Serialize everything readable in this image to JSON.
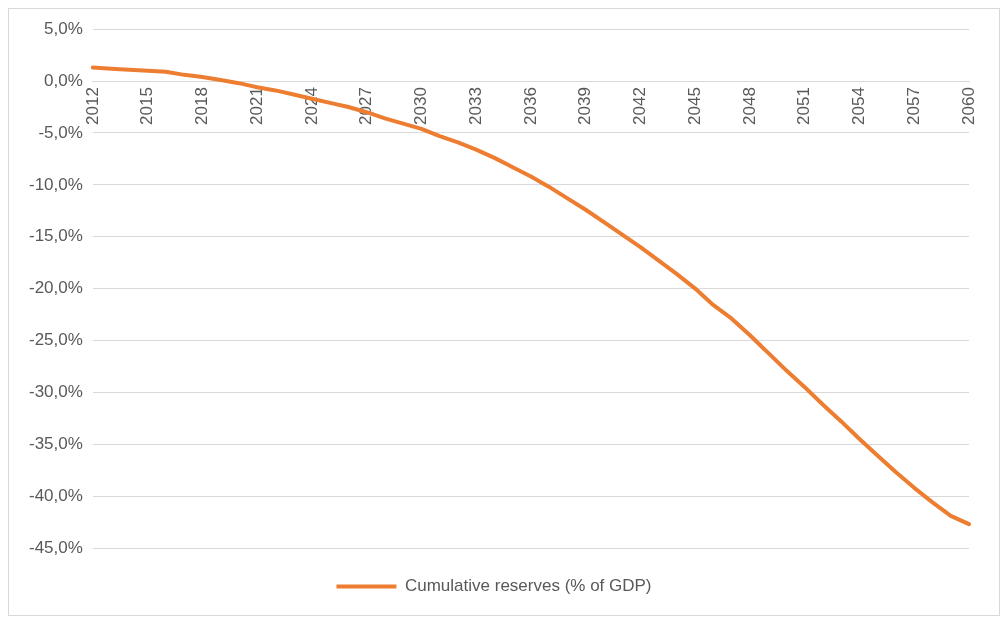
{
  "chart_data": {
    "type": "line",
    "categories": [
      "2012",
      null,
      null,
      "2015",
      null,
      null,
      "2018",
      null,
      null,
      "2021",
      null,
      null,
      "2024",
      null,
      null,
      "2027",
      null,
      null,
      "2030",
      null,
      null,
      "2033",
      null,
      null,
      "2036",
      null,
      null,
      "2039",
      null,
      null,
      "2042",
      null,
      null,
      "2045",
      null,
      null,
      "2048",
      null,
      null,
      "2051",
      null,
      null,
      "2054",
      null,
      null,
      "2057",
      null,
      null,
      "2060"
    ],
    "series": [
      {
        "name": "Cumulative reserves (% of GDP)",
        "color": "#ed7d31",
        "values": [
          1.3,
          1.2,
          1.1,
          1.0,
          0.9,
          0.6,
          0.4,
          0.1,
          -0.2,
          -0.6,
          -0.9,
          -1.3,
          -1.7,
          -2.1,
          -2.5,
          -3.0,
          -3.6,
          -4.1,
          -4.6,
          -5.3,
          -5.9,
          -6.6,
          -7.4,
          -8.3,
          -9.2,
          -10.2,
          -11.3,
          -12.4,
          -13.6,
          -14.8,
          -16.0,
          -17.3,
          -18.6,
          -20.0,
          -21.6,
          -22.9,
          -24.5,
          -26.2,
          -27.9,
          -29.5,
          -31.2,
          -32.8,
          -34.5,
          -36.1,
          -37.7,
          -39.2,
          -40.6,
          -41.9,
          -42.7
        ]
      }
    ],
    "ylim": [
      -45,
      5
    ],
    "yticks": [
      {
        "value": 5,
        "label": "5,0%"
      },
      {
        "value": 0,
        "label": "0,0%"
      },
      {
        "value": -5,
        "label": "-5,0%"
      },
      {
        "value": -10,
        "label": "-10,0%"
      },
      {
        "value": -15,
        "label": "-15,0%"
      },
      {
        "value": -20,
        "label": "-20,0%"
      },
      {
        "value": -25,
        "label": "-25,0%"
      },
      {
        "value": -30,
        "label": "-30,0%"
      },
      {
        "value": -35,
        "label": "-35,0%"
      },
      {
        "value": -40,
        "label": "-40,0%"
      },
      {
        "value": -45,
        "label": "-45,0%"
      }
    ],
    "grid": "y",
    "legend": "bottom",
    "marker": "none",
    "line_style": "solid"
  }
}
